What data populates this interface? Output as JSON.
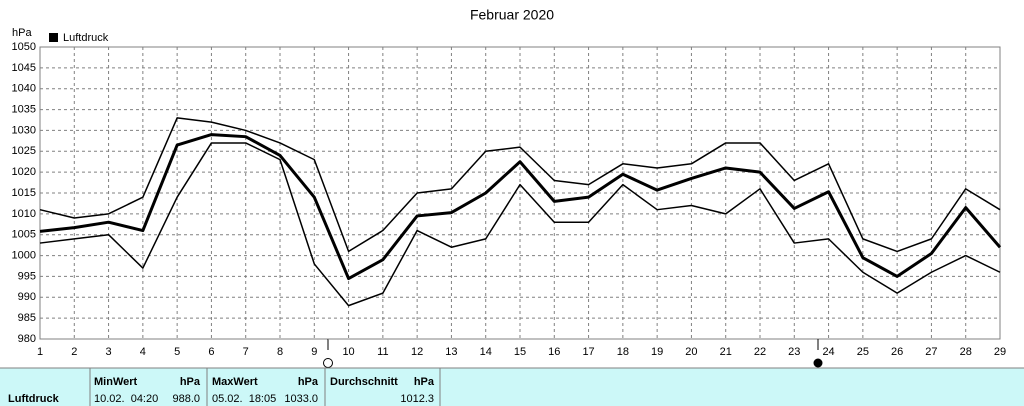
{
  "chart_data": {
    "type": "line",
    "title": "Februar 2020",
    "y_label": "hPa",
    "x": [
      1,
      2,
      3,
      4,
      5,
      6,
      7,
      8,
      9,
      10,
      11,
      12,
      13,
      14,
      15,
      16,
      17,
      18,
      19,
      20,
      21,
      22,
      23,
      24,
      25,
      26,
      27,
      28,
      29
    ],
    "series": [
      {
        "name": "Luftdruck",
        "color": "#000000",
        "line_width": 3,
        "values": [
          1005.8,
          1006.7,
          1008,
          1006,
          1026.5,
          1029,
          1028.5,
          1024,
          1014,
          994.5,
          999,
          1009.5,
          1010.3,
          1015,
          1022.5,
          1013,
          1014,
          1019.5,
          1015.7,
          1018.5,
          1021,
          1020,
          1011.3,
          1015.3,
          999.5,
          995,
          1000.5,
          1011.5,
          1002
        ]
      },
      {
        "color": "#000000",
        "line_width": 1.5,
        "values": [
          1011,
          1009,
          1010,
          1014,
          1033,
          1032,
          1030,
          1027,
          1023,
          1001,
          1006,
          1015,
          1016,
          1025,
          1026,
          1018,
          1017,
          1022,
          1021,
          1022,
          1027,
          1027,
          1018,
          1022,
          1004,
          1001,
          1004,
          1016,
          1011
        ]
      },
      {
        "color": "#000000",
        "line_width": 1.5,
        "values": [
          1003,
          1004,
          1005,
          997,
          1014,
          1027,
          1027,
          1023,
          998,
          988,
          991,
          1006,
          1002,
          1004,
          1017,
          1008,
          1008,
          1017,
          1011,
          1012,
          1010,
          1016,
          1003,
          1004,
          996,
          991,
          996,
          1000,
          996
        ]
      }
    ],
    "xlim": [
      1,
      29
    ],
    "xticks": [
      1,
      2,
      3,
      4,
      5,
      6,
      7,
      8,
      9,
      10,
      11,
      12,
      13,
      14,
      15,
      16,
      17,
      18,
      19,
      20,
      21,
      22,
      23,
      24,
      25,
      26,
      27,
      28,
      29
    ],
    "ylim": [
      980,
      1050
    ],
    "yticks": [
      980,
      985,
      990,
      995,
      1000,
      1005,
      1010,
      1015,
      1020,
      1025,
      1030,
      1035,
      1040,
      1045,
      1050
    ],
    "grid": true,
    "legend": "top-left"
  },
  "stats": {
    "name": "Luftdruck",
    "min": {
      "label": "MinWert",
      "unit": "hPa",
      "time": "10.02.  04:20",
      "value": "988.0"
    },
    "max": {
      "label": "MaxWert",
      "unit": "hPa",
      "time": "05.02.  18:05",
      "value": "1033.0"
    },
    "avg": {
      "label": "Durchschnitt",
      "unit": "hPa",
      "value": "1012.3"
    }
  }
}
